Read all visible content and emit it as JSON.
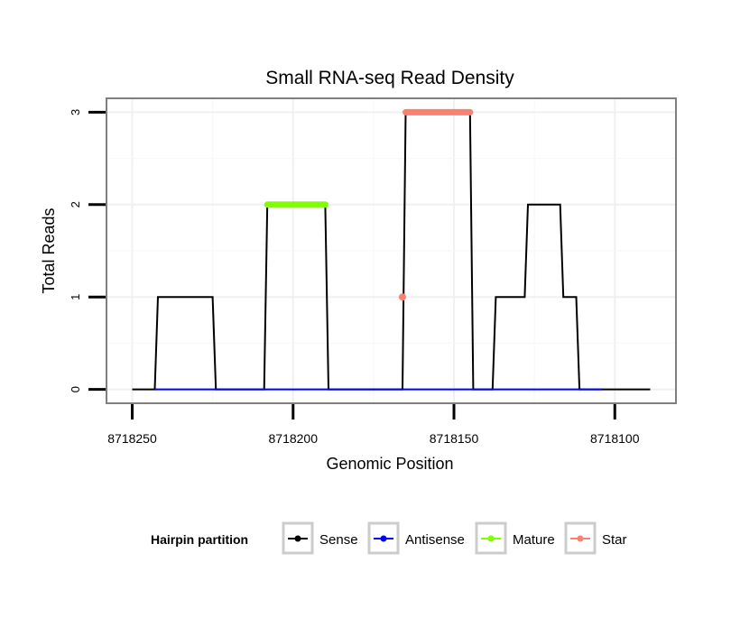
{
  "chart_data": {
    "type": "line",
    "title": "Small RNA-seq Read Density",
    "xlabel": "Genomic Position",
    "ylabel": "Total Reads",
    "xlim": [
      8718258,
      8718081
    ],
    "ylim": [
      -0.15,
      3.15
    ],
    "x_reversed": true,
    "xticks": [
      8718250,
      8718200,
      8718150,
      8718100
    ],
    "xtick_labels": [
      "8718250",
      "8718200",
      "8718150",
      "8718100"
    ],
    "yticks": [
      0,
      1,
      2,
      3
    ],
    "ytick_labels": [
      "0",
      "1",
      "2",
      "3"
    ],
    "grid": true,
    "legend": {
      "title": "Hairpin partition",
      "position": "bottom",
      "entries": [
        {
          "name": "Sense",
          "color": "#000000"
        },
        {
          "name": "Antisense",
          "color": "#0000ff"
        },
        {
          "name": "Mature",
          "color": "#7fff00"
        },
        {
          "name": "Star",
          "color": "#fa8072"
        }
      ]
    },
    "series": [
      {
        "name": "Sense",
        "color": "#000000",
        "kind": "line",
        "x": [
          8718250,
          8718243,
          8718242,
          8718225,
          8718224,
          8718209,
          8718208,
          8718190,
          8718189,
          8718166,
          8718165,
          8718145,
          8718144,
          8718138,
          8718137,
          8718128,
          8718127,
          8718117,
          8718116,
          8718112,
          8718111,
          8718105,
          8718104,
          8718089
        ],
        "y": [
          0,
          0,
          1,
          1,
          0,
          0,
          2,
          2,
          0,
          0,
          3,
          3,
          0,
          0,
          1,
          1,
          2,
          2,
          1,
          1,
          0,
          0,
          0,
          0
        ]
      },
      {
        "name": "Antisense",
        "color": "#0000ff",
        "kind": "line",
        "x": [
          8718243,
          8718104
        ],
        "y": [
          0,
          0
        ]
      },
      {
        "name": "Mature",
        "color": "#7fff00",
        "kind": "points",
        "x": [
          8718208,
          8718190
        ],
        "y": [
          2,
          2
        ]
      },
      {
        "name": "Star",
        "color": "#fa8072",
        "kind": "points",
        "x": [
          8718165,
          8718145
        ],
        "y": [
          3,
          3
        ]
      },
      {
        "name": "Star",
        "color": "#fa8072",
        "kind": "point",
        "x": [
          8718166
        ],
        "y": [
          1
        ]
      }
    ]
  }
}
